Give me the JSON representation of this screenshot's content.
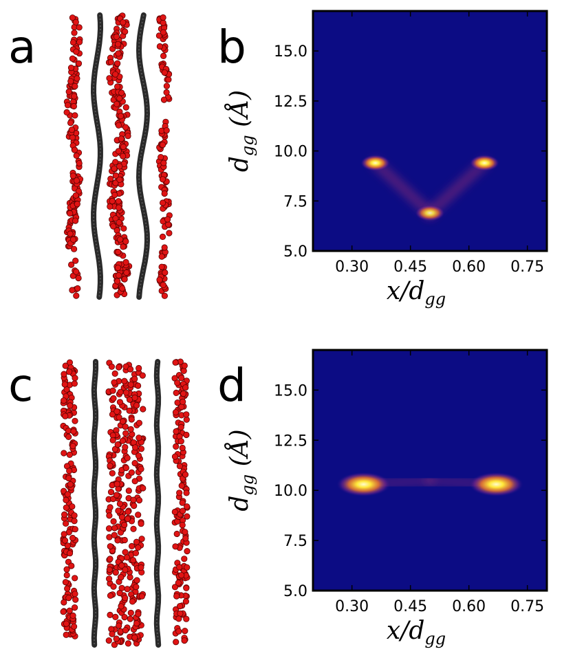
{
  "figure": {
    "panels": [
      {
        "letter": "a",
        "kind": "snapshot"
      },
      {
        "letter": "b",
        "kind": "heatmap"
      },
      {
        "letter": "c",
        "kind": "snapshot"
      },
      {
        "letter": "d",
        "kind": "heatmap"
      }
    ],
    "colors": {
      "background": "#0c0c84",
      "ion": "#e01414",
      "graphene": "#2a2a2a",
      "hot": "#ffe83a",
      "mid": "#c83c6c"
    }
  },
  "chart_data": [
    {
      "panel": "b",
      "type": "heatmap",
      "xlabel": "x/d_gg",
      "ylabel": "d_gg (Å)",
      "xlim": [
        0.2,
        0.8
      ],
      "ylim": [
        5.0,
        17.0
      ],
      "xticks": [
        "0.30",
        "0.45",
        "0.60",
        "0.75"
      ],
      "xtick_values": [
        0.3,
        0.45,
        0.6,
        0.75
      ],
      "yticks": [
        "5.0",
        "7.5",
        "10.0",
        "12.5",
        "15.0"
      ],
      "ytick_values": [
        5.0,
        7.5,
        10.0,
        12.5,
        15.0
      ],
      "peaks": [
        {
          "x": 0.36,
          "y": 9.4,
          "intensity": 1.0
        },
        {
          "x": 0.64,
          "y": 9.4,
          "intensity": 1.0
        },
        {
          "x": 0.5,
          "y": 6.9,
          "intensity": 0.9
        }
      ],
      "ridges": [
        {
          "from": [
            0.36,
            9.4
          ],
          "to": [
            0.5,
            6.9
          ],
          "intensity": 0.35
        },
        {
          "from": [
            0.64,
            9.4
          ],
          "to": [
            0.5,
            6.9
          ],
          "intensity": 0.35
        }
      ]
    },
    {
      "panel": "d",
      "type": "heatmap",
      "xlabel": "x/d_gg",
      "ylabel": "d_gg (Å)",
      "xlim": [
        0.2,
        0.8
      ],
      "ylim": [
        5.0,
        17.0
      ],
      "xticks": [
        "0.30",
        "0.45",
        "0.60",
        "0.75"
      ],
      "xtick_values": [
        0.3,
        0.45,
        0.6,
        0.75
      ],
      "yticks": [
        "5.0",
        "7.5",
        "10.0",
        "12.5",
        "15.0"
      ],
      "ytick_values": [
        5.0,
        7.5,
        10.0,
        12.5,
        15.0
      ],
      "peaks": [
        {
          "x": 0.33,
          "y": 10.3,
          "intensity": 1.0
        },
        {
          "x": 0.67,
          "y": 10.3,
          "intensity": 1.0
        }
      ],
      "ridges": [
        {
          "from": [
            0.33,
            10.3
          ],
          "to": [
            0.5,
            10.5
          ],
          "intensity": 0.25
        },
        {
          "from": [
            0.67,
            10.3
          ],
          "to": [
            0.5,
            10.5
          ],
          "intensity": 0.25
        }
      ]
    }
  ]
}
